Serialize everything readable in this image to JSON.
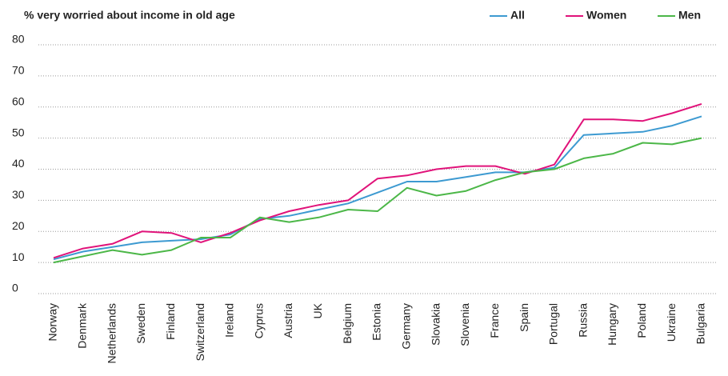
{
  "chart_data": {
    "type": "line",
    "title": "% very worried about income in old age",
    "categories": [
      "Norway",
      "Denmark",
      "Netherlands",
      "Sweden",
      "Finland",
      "Switzerland",
      "Ireland",
      "Cyprus",
      "Austria",
      "UK",
      "Belgium",
      "Estonia",
      "Germany",
      "Slovakia",
      "Slovenia",
      "France",
      "Spain",
      "Portugal",
      "Russia",
      "Hungary",
      "Poland",
      "Ukraine",
      "Bulgaria"
    ],
    "series": [
      {
        "name": "All",
        "color": "#3d9ad1",
        "values": [
          11,
          13.5,
          15,
          16.5,
          17,
          17.5,
          19,
          24,
          25,
          27,
          29,
          32.5,
          36,
          36,
          37.5,
          39,
          39,
          40.5,
          51,
          51.5,
          52,
          54,
          57
        ]
      },
      {
        "name": "Women",
        "color": "#e0137a",
        "values": [
          11.5,
          14.5,
          16,
          20,
          19.5,
          16.5,
          19.5,
          23.5,
          26.5,
          28.5,
          30,
          37,
          38,
          40,
          41,
          41,
          38.5,
          41.5,
          56,
          56,
          55.5,
          58,
          61
        ]
      },
      {
        "name": "Men",
        "color": "#4cb748",
        "values": [
          10,
          12,
          14,
          12.5,
          14,
          18,
          18,
          24.5,
          23,
          24.5,
          27,
          26.5,
          34,
          31.5,
          33,
          36.5,
          39,
          40,
          43.5,
          45,
          48.5,
          48,
          50
        ]
      }
    ],
    "ylim": [
      0,
      80
    ],
    "yticks": [
      0,
      10,
      20,
      30,
      40,
      50,
      60,
      70,
      80
    ],
    "grid": true,
    "legend": "top-right"
  }
}
